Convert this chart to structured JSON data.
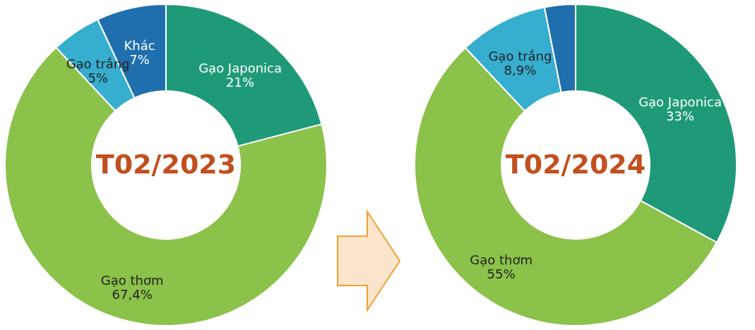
{
  "chart_data": [
    {
      "type": "donut",
      "title": "T02/2023",
      "categories": [
        "Gạo Japonica",
        "Gạo thơm",
        "Gạo trắng",
        "Khác"
      ],
      "values": [
        21,
        67.4,
        5,
        7
      ],
      "colors": [
        "#1f9a78",
        "#8bc24a",
        "#36aed0",
        "#1f6fae"
      ],
      "value_labels": [
        "21%",
        "67,4%",
        "5%",
        "7%"
      ]
    },
    {
      "type": "donut",
      "title": "T02/2024",
      "categories": [
        "Gạo Japonica",
        "Gạo thơm",
        "Gạo trắng",
        null
      ],
      "values": [
        33,
        55,
        8.9,
        3.1
      ],
      "colors": [
        "#1f9a78",
        "#8bc24a",
        "#36aed0",
        "#1f6fae"
      ],
      "value_labels": [
        "33%",
        "55%",
        "8,9%",
        null
      ]
    }
  ]
}
